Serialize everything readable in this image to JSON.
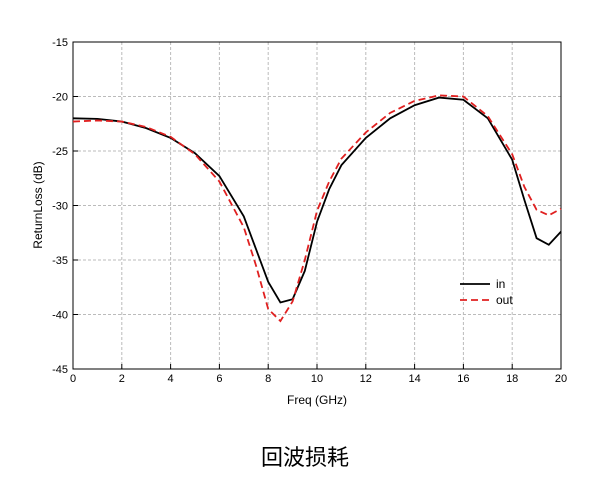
{
  "chart_data": {
    "type": "line",
    "xlabel": "Freq (GHz)",
    "ylabel": "ReturnLoss (dB)",
    "caption": "回波损耗",
    "x": [
      0,
      1,
      2,
      3,
      4,
      5,
      6,
      7,
      7.5,
      8,
      8.5,
      9,
      9.5,
      10,
      10.5,
      11,
      12,
      13,
      14,
      15,
      16,
      17,
      18,
      18.5,
      19,
      19.5,
      20
    ],
    "series": [
      {
        "name": "in",
        "color": "#000000",
        "dash": false,
        "values": [
          -22,
          -22.05,
          -22.3,
          -22.9,
          -23.8,
          -25.2,
          -27.3,
          -31,
          -34,
          -37,
          -38.9,
          -38.6,
          -36,
          -31.5,
          -28.5,
          -26.3,
          -23.8,
          -22,
          -20.8,
          -20.1,
          -20.3,
          -22,
          -25.8,
          -29.5,
          -33,
          -33.6,
          -32.4
        ]
      },
      {
        "name": "out",
        "color": "#e02020",
        "dash": true,
        "values": [
          -22.3,
          -22.2,
          -22.3,
          -22.8,
          -23.7,
          -25.3,
          -27.8,
          -32,
          -35.5,
          -39.5,
          -40.6,
          -38.8,
          -35,
          -30.5,
          -27.8,
          -25.7,
          -23.3,
          -21.5,
          -20.4,
          -19.9,
          -20,
          -21.8,
          -25.3,
          -28.3,
          -30.4,
          -30.9,
          -30.3
        ]
      }
    ],
    "xlim": [
      0,
      20
    ],
    "xticks": [
      0,
      2,
      4,
      6,
      8,
      10,
      12,
      14,
      16,
      18,
      20
    ],
    "ylim": [
      -45,
      -15
    ],
    "yticks": [
      -45,
      -40,
      -35,
      -30,
      -25,
      -20,
      -15
    ],
    "grid": true,
    "legend": "lower-right"
  }
}
